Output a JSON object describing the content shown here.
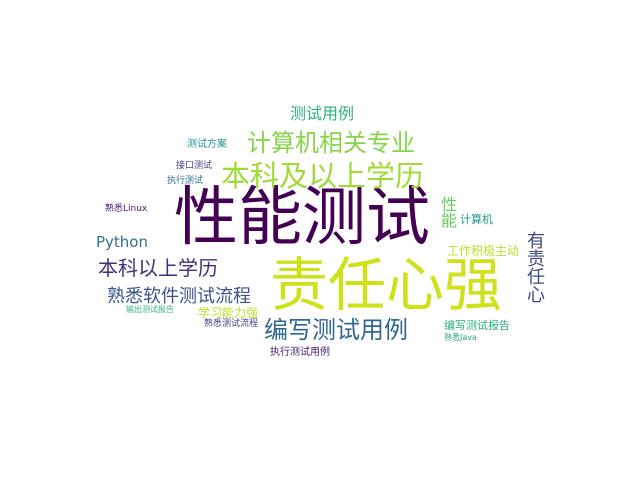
{
  "words": [
    {
      "text": "性能测试",
      "color": "#440154"
    },
    {
      "text": "责任心强",
      "color": "#d0e11c"
    },
    {
      "text": "本科及以上学历",
      "color": "#a0da39"
    },
    {
      "text": "计算机相关专业",
      "color": "#86d549"
    },
    {
      "text": "编写测试用例",
      "color": "#31688e"
    },
    {
      "text": "本科以上学历",
      "color": "#472d7b"
    },
    {
      "text": "熟悉软件测试流程",
      "color": "#3b528b"
    },
    {
      "text": "测试用例",
      "color": "#2db27d"
    },
    {
      "text": "有责任心",
      "color": "#3e4a89"
    },
    {
      "text": "Python",
      "color": "#2c728e"
    },
    {
      "text": "性能",
      "color": "#65cb5e"
    },
    {
      "text": "工作积极主动",
      "color": "#bddf26"
    },
    {
      "text": "编写测试报告",
      "color": "#28ae80"
    },
    {
      "text": "学习能力强",
      "color": "#c2df23"
    },
    {
      "text": "测试方案",
      "color": "#21918c"
    },
    {
      "text": "计算机",
      "color": "#1f988b"
    },
    {
      "text": "执行测试用例",
      "color": "#482173"
    },
    {
      "text": "接口测试",
      "color": "#433e85"
    },
    {
      "text": "执行测试",
      "color": "#2a788e"
    },
    {
      "text": "熟悉Linux",
      "color": "#481a6c"
    },
    {
      "text": "输出测试报告",
      "color": "#35b779"
    },
    {
      "text": "熟悉测试流程",
      "color": "#414487"
    },
    {
      "text": "熟悉Java",
      "color": "#1fa187"
    }
  ]
}
